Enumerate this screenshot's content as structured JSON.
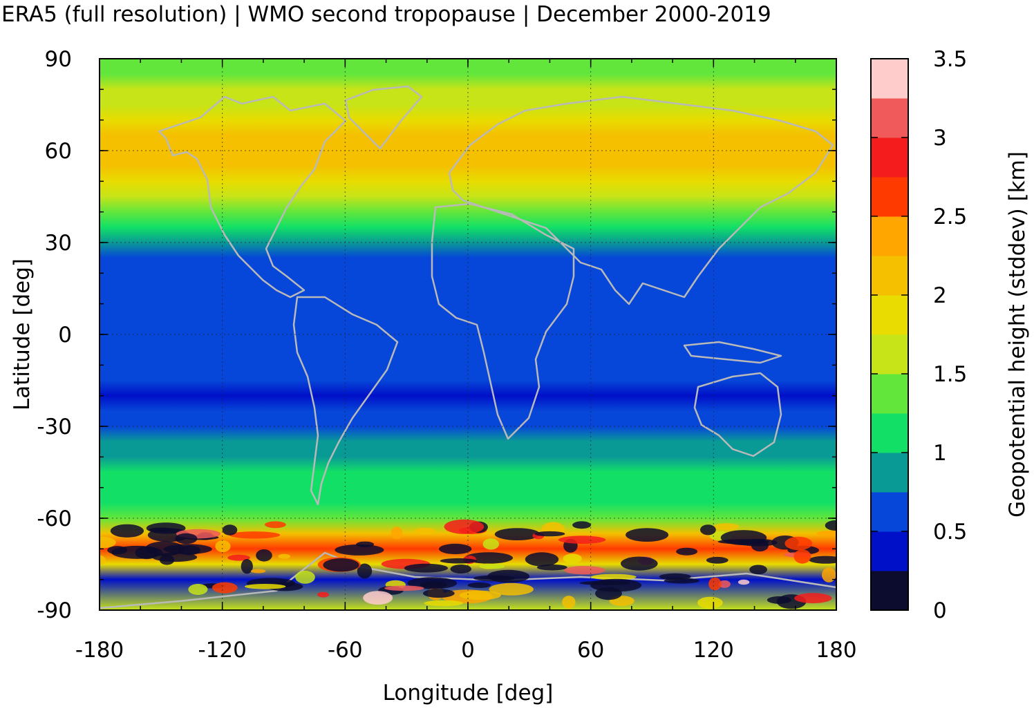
{
  "chart_data": {
    "type": "heatmap",
    "title": "ERA5 (full resolution) | WMO second tropopause | December 2000-2019",
    "xlabel": "Longitude [deg]",
    "ylabel": "Latitude [deg]",
    "xlim": [
      -180,
      180
    ],
    "ylim": [
      -90,
      90
    ],
    "x_ticks": [
      -180,
      -120,
      -60,
      0,
      60,
      120,
      180
    ],
    "y_ticks": [
      -90,
      -60,
      -30,
      0,
      30,
      60,
      90
    ],
    "x_tick_labels": [
      "-180",
      "-120",
      "-60",
      "0",
      "60",
      "120",
      "180"
    ],
    "y_tick_labels": [
      "-90",
      "-60",
      "-30",
      "0",
      "30",
      "60",
      "90"
    ],
    "grid": true,
    "colorbar": {
      "label": "Geopotential height (stddev) [km]",
      "range": [
        0,
        3.5
      ],
      "step": 0.25,
      "tick_values": [
        0,
        0.5,
        1,
        1.5,
        2,
        2.5,
        3,
        3.5
      ],
      "tick_labels": [
        "0",
        "0.5",
        "1",
        "1.5",
        "2",
        "2.5",
        "3",
        "3.5"
      ],
      "colors": [
        "#0c0c2e",
        "#0010c8",
        "#0646d8",
        "#0a9a96",
        "#12e066",
        "#62e63c",
        "#c6e418",
        "#e8dc00",
        "#f4c000",
        "#ffa600",
        "#ff3a00",
        "#f41c1c",
        "#f05a5a",
        "#ffcccc"
      ]
    },
    "zonal_profile": {
      "description_lat": [
        -90,
        -80,
        -75,
        -70,
        -65,
        -60,
        -55,
        -50,
        -45,
        -40,
        -35,
        -30,
        -25,
        -20,
        -15,
        -10,
        -5,
        0,
        5,
        10,
        15,
        20,
        25,
        30,
        35,
        40,
        45,
        50,
        55,
        60,
        65,
        70,
        75,
        80,
        85,
        90
      ],
      "stddev_km": [
        1.5,
        0.3,
        1.8,
        2.6,
        2.2,
        1.3,
        1.2,
        1.1,
        1.0,
        0.9,
        0.8,
        0.6,
        0.5,
        0.4,
        0.5,
        0.6,
        0.6,
        0.7,
        0.6,
        0.5,
        0.5,
        0.5,
        0.6,
        0.9,
        1.1,
        1.3,
        1.6,
        1.8,
        2.0,
        2.1,
        2.0,
        1.8,
        1.6,
        1.5,
        1.4,
        1.4
      ]
    }
  }
}
